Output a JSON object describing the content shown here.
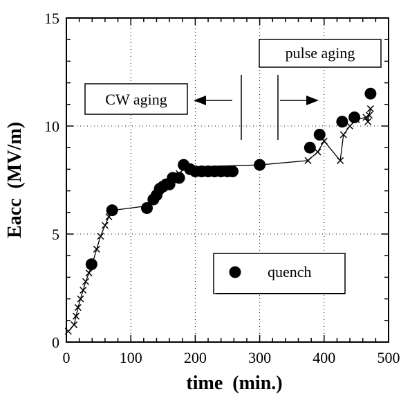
{
  "chart_data": {
    "type": "scatter",
    "xlabel": "time  (min.)",
    "ylabel": "Eacc  (MV/m)",
    "xlim": [
      0,
      500
    ],
    "ylim": [
      0,
      15
    ],
    "x_ticks": [
      0,
      100,
      200,
      300,
      400,
      500
    ],
    "y_ticks": [
      0,
      5,
      10,
      15
    ],
    "grid": "dotted",
    "series": [
      {
        "marker": "cross",
        "line": true,
        "points": [
          [
            3,
            0.5
          ],
          [
            12,
            0.8
          ],
          [
            15,
            1.2
          ],
          [
            18,
            1.6
          ],
          [
            22,
            2.0
          ],
          [
            26,
            2.4
          ],
          [
            30,
            2.8
          ],
          [
            35,
            3.2
          ],
          [
            40,
            3.6
          ],
          [
            47,
            4.3
          ],
          [
            53,
            4.9
          ],
          [
            60,
            5.4
          ],
          [
            66,
            5.8
          ],
          [
            72,
            6.1
          ],
          [
            125,
            6.3
          ],
          [
            135,
            6.6
          ],
          [
            145,
            7.0
          ],
          [
            160,
            7.3
          ],
          [
            175,
            7.8
          ],
          [
            185,
            8.1
          ],
          [
            300,
            8.2
          ],
          [
            375,
            8.4
          ],
          [
            390,
            8.8
          ],
          [
            400,
            9.3
          ],
          [
            425,
            8.4
          ],
          [
            430,
            9.6
          ],
          [
            440,
            10.0
          ],
          [
            450,
            10.3
          ],
          [
            465,
            10.4
          ],
          [
            468,
            10.2
          ],
          [
            470,
            10.5
          ],
          [
            472,
            10.8
          ]
        ]
      },
      {
        "name": "quench",
        "marker": "filled-circle",
        "points": [
          [
            39,
            3.6
          ],
          [
            71,
            6.1
          ],
          [
            125,
            6.2
          ],
          [
            135,
            6.6
          ],
          [
            140,
            6.8
          ],
          [
            145,
            7.1
          ],
          [
            150,
            7.2
          ],
          [
            155,
            7.3
          ],
          [
            160,
            7.3
          ],
          [
            165,
            7.6
          ],
          [
            175,
            7.6
          ],
          [
            182,
            8.2
          ],
          [
            192,
            8.0
          ],
          [
            200,
            7.9
          ],
          [
            210,
            7.9
          ],
          [
            220,
            7.9
          ],
          [
            230,
            7.9
          ],
          [
            240,
            7.9
          ],
          [
            250,
            7.9
          ],
          [
            258,
            7.9
          ],
          [
            300,
            8.2
          ],
          [
            378,
            9.0
          ],
          [
            393,
            9.6
          ],
          [
            428,
            10.2
          ],
          [
            447,
            10.4
          ],
          [
            472,
            11.5
          ]
        ]
      }
    ],
    "annotations": [
      {
        "text": "CW aging",
        "arrow": "left"
      },
      {
        "text": "pulse aging",
        "arrow": "right"
      }
    ],
    "legend": {
      "position": "lower-right",
      "label": "quench"
    }
  }
}
